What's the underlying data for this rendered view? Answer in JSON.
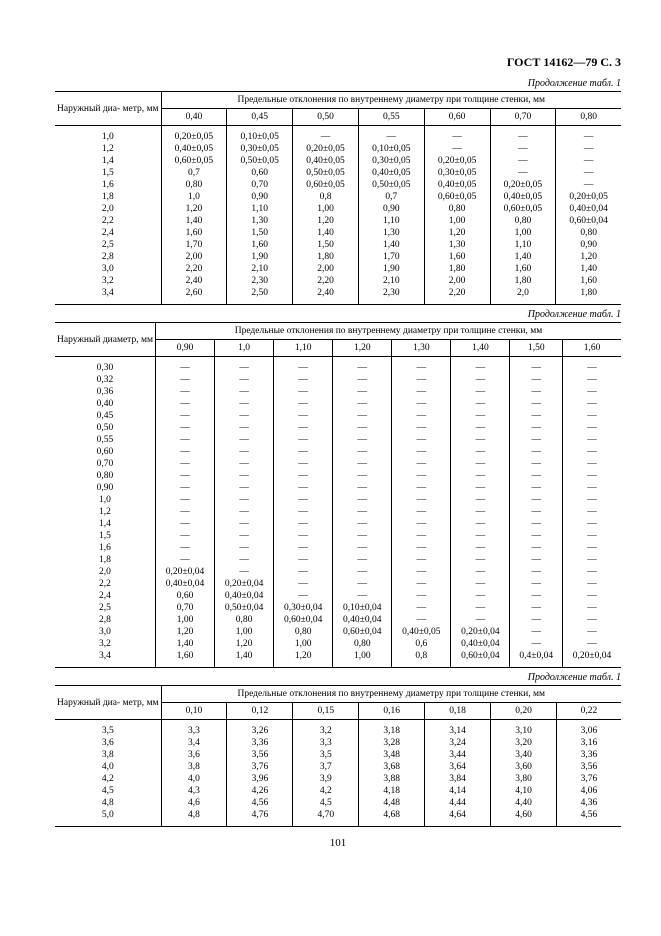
{
  "header": "ГОСТ 14162—79 С. 3",
  "caption": "Продолжение табл. 1",
  "page_number": "101",
  "spanning_header": "Предельные отклонения по внутреннему диаметру при толщине стенки, мм",
  "rowhead1": "Наружный диа-\nметр, мм",
  "rowhead2": "Наружный\nдиаметр, мм",
  "rowhead3": "Наружный диа-\nметр, мм",
  "dash": "—",
  "table1": {
    "cols": [
      "0,40",
      "0,45",
      "0,50",
      "0,55",
      "0,60",
      "0,70",
      "0,80"
    ],
    "rows": [
      {
        "d": "1,0",
        "v": [
          "0,20±0,05",
          "0,10±0,05",
          "—",
          "—",
          "—",
          "—",
          "—"
        ]
      },
      {
        "d": "1,2",
        "v": [
          "0,40±0,05",
          "0,30±0,05",
          "0,20±0,05",
          "0,10±0,05",
          "—",
          "—",
          "—"
        ]
      },
      {
        "d": "1,4",
        "v": [
          "0,60±0,05",
          "0,50±0,05",
          "0,40±0,05",
          "0,30±0,05",
          "0,20±0,05",
          "—",
          "—"
        ]
      },
      {
        "d": "1,5",
        "v": [
          "0,7",
          "0,60",
          "0,50±0,05",
          "0,40±0,05",
          "0,30±0,05",
          "—",
          "—"
        ]
      },
      {
        "d": "1,6",
        "v": [
          "0,80",
          "0,70",
          "0,60±0,05",
          "0,50±0,05",
          "0,40±0,05",
          "0,20±0,05",
          "—"
        ]
      },
      {
        "d": "1,8",
        "v": [
          "1,0",
          "0,90",
          "0,8",
          "0,7",
          "0,60±0,05",
          "0,40±0,05",
          "0,20±0,05"
        ]
      },
      {
        "d": "2,0",
        "v": [
          "1,20",
          "1,10",
          "1,00",
          "0,90",
          "0,80",
          "0,60±0,05",
          "0,40±0,04"
        ]
      },
      {
        "d": "2,2",
        "v": [
          "1,40",
          "1,30",
          "1,20",
          "1,10",
          "1,00",
          "0,80",
          "0,60±0,04"
        ]
      },
      {
        "d": "2,4",
        "v": [
          "1,60",
          "1,50",
          "1,40",
          "1,30",
          "1,20",
          "1,00",
          "0,80"
        ]
      },
      {
        "d": "2,5",
        "v": [
          "1,70",
          "1,60",
          "1,50",
          "1,40",
          "1,30",
          "1,10",
          "0,90"
        ]
      },
      {
        "d": "2,8",
        "v": [
          "2,00",
          "1,90",
          "1,80",
          "1,70",
          "1,60",
          "1,40",
          "1,20"
        ]
      },
      {
        "d": "3,0",
        "v": [
          "2,20",
          "2,10",
          "2,00",
          "1,90",
          "1,80",
          "1,60",
          "1,40"
        ]
      },
      {
        "d": "3,2",
        "v": [
          "2,40",
          "2,30",
          "2,20",
          "2,10",
          "2,00",
          "1,80",
          "1,60"
        ]
      },
      {
        "d": "3,4",
        "v": [
          "2,60",
          "2,50",
          "2,40",
          "2,30",
          "2,20",
          "2,0",
          "1,80"
        ]
      }
    ]
  },
  "table2": {
    "cols": [
      "0,90",
      "1,0",
      "1,10",
      "1,20",
      "1,30",
      "1,40",
      "1,50",
      "1,60"
    ],
    "rows": [
      {
        "d": "0,30",
        "v": [
          "—",
          "—",
          "—",
          "—",
          "—",
          "—",
          "—",
          "—"
        ]
      },
      {
        "d": "0,32",
        "v": [
          "—",
          "—",
          "—",
          "—",
          "—",
          "—",
          "—",
          "—"
        ]
      },
      {
        "d": "0,36",
        "v": [
          "—",
          "—",
          "—",
          "—",
          "—",
          "—",
          "—",
          "—"
        ]
      },
      {
        "d": "0,40",
        "v": [
          "—",
          "—",
          "—",
          "—",
          "—",
          "—",
          "—",
          "—"
        ]
      },
      {
        "d": "0,45",
        "v": [
          "—",
          "—",
          "—",
          "—",
          "—",
          "—",
          "—",
          "—"
        ]
      },
      {
        "d": "0,50",
        "v": [
          "—",
          "—",
          "—",
          "—",
          "—",
          "—",
          "—",
          "—"
        ]
      },
      {
        "d": "0,55",
        "v": [
          "—",
          "—",
          "—",
          "—",
          "—",
          "—",
          "—",
          "—"
        ]
      },
      {
        "d": "0,60",
        "v": [
          "—",
          "—",
          "—",
          "—",
          "—",
          "—",
          "—",
          "—"
        ]
      },
      {
        "d": "0,70",
        "v": [
          "—",
          "—",
          "—",
          "—",
          "—",
          "—",
          "—",
          "—"
        ]
      },
      {
        "d": "0,80",
        "v": [
          "—",
          "—",
          "—",
          "—",
          "—",
          "—",
          "—",
          "—"
        ]
      },
      {
        "d": "0,90",
        "v": [
          "—",
          "—",
          "—",
          "—",
          "—",
          "—",
          "—",
          "—"
        ]
      },
      {
        "d": "1,0",
        "v": [
          "—",
          "—",
          "—",
          "—",
          "—",
          "—",
          "—",
          "—"
        ]
      },
      {
        "d": "1,2",
        "v": [
          "—",
          "—",
          "—",
          "—",
          "—",
          "—",
          "—",
          "—"
        ]
      },
      {
        "d": "1,4",
        "v": [
          "—",
          "—",
          "—",
          "—",
          "—",
          "—",
          "—",
          "—"
        ]
      },
      {
        "d": "1,5",
        "v": [
          "—",
          "—",
          "—",
          "—",
          "—",
          "—",
          "—",
          "—"
        ]
      },
      {
        "d": "1,6",
        "v": [
          "—",
          "—",
          "—",
          "—",
          "—",
          "—",
          "—",
          "—"
        ]
      },
      {
        "d": "1,8",
        "v": [
          "—",
          "—",
          "—",
          "—",
          "—",
          "—",
          "—",
          "—"
        ]
      },
      {
        "d": "2,0",
        "v": [
          "0,20±0,04",
          "—",
          "—",
          "—",
          "—",
          "—",
          "—",
          "—"
        ]
      },
      {
        "d": "2,2",
        "v": [
          "0,40±0,04",
          "0,20±0,04",
          "—",
          "—",
          "—",
          "—",
          "—",
          "—"
        ]
      },
      {
        "d": "2,4",
        "v": [
          "0,60",
          "0,40±0,04",
          "—",
          "—",
          "—",
          "—",
          "—",
          "—"
        ]
      },
      {
        "d": "2,5",
        "v": [
          "0,70",
          "0,50±0,04",
          "0,30±0,04",
          "0,10±0,04",
          "—",
          "—",
          "—",
          "—"
        ]
      },
      {
        "d": "2,8",
        "v": [
          "1,00",
          "0,80",
          "0,60±0,04",
          "0,40±0,04",
          "—",
          "—",
          "—",
          "—"
        ]
      },
      {
        "d": "3,0",
        "v": [
          "1,20",
          "1,00",
          "0,80",
          "0,60±0,04",
          "0,40±0,05",
          "0,20±0,04",
          "—",
          "—"
        ]
      },
      {
        "d": "3,2",
        "v": [
          "1,40",
          "1,20",
          "1,00",
          "0,80",
          "0,6",
          "0,40±0,04",
          "—",
          "—"
        ]
      },
      {
        "d": "3,4",
        "v": [
          "1,60",
          "1,40",
          "1,20",
          "1,00",
          "0,8",
          "0,60±0,04",
          "0,4±0,04",
          "0,20±0,04"
        ]
      }
    ]
  },
  "table3": {
    "cols": [
      "0,10",
      "0,12",
      "0,15",
      "0,16",
      "0,18",
      "0,20",
      "0,22"
    ],
    "rows": [
      {
        "d": "3,5",
        "v": [
          "3,3",
          "3,26",
          "3,2",
          "3,18",
          "3,14",
          "3,10",
          "3,06"
        ]
      },
      {
        "d": "3,6",
        "v": [
          "3,4",
          "3,36",
          "3,3",
          "3,28",
          "3,24",
          "3,20",
          "3,16"
        ]
      },
      {
        "d": "3,8",
        "v": [
          "3,6",
          "3,56",
          "3,5",
          "3,48",
          "3,44",
          "3,40",
          "3,36"
        ]
      },
      {
        "d": "4,0",
        "v": [
          "3,8",
          "3,76",
          "3,7",
          "3,68",
          "3,64",
          "3,60",
          "3,56"
        ]
      },
      {
        "d": "4,2",
        "v": [
          "4,0",
          "3,96",
          "3,9",
          "3,88",
          "3,84",
          "3,80",
          "3,76"
        ]
      },
      {
        "d": "4,5",
        "v": [
          "4,3",
          "4,26",
          "4,2",
          "4,18",
          "4,14",
          "4,10",
          "4,06"
        ]
      },
      {
        "d": "4,8",
        "v": [
          "4,6",
          "4,56",
          "4,5",
          "4,48",
          "4,44",
          "4,40",
          "4,36"
        ]
      },
      {
        "d": "5,0",
        "v": [
          "4,8",
          "4,76",
          "4,70",
          "4,68",
          "4,64",
          "4,60",
          "4,56"
        ]
      }
    ]
  }
}
